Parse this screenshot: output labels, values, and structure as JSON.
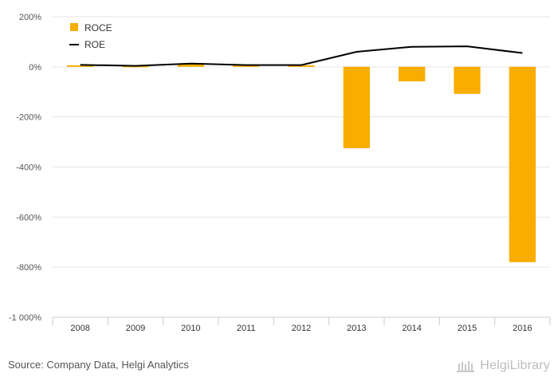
{
  "chart_data": {
    "type": "bar",
    "categories": [
      "2008",
      "2009",
      "2010",
      "2011",
      "2012",
      "2013",
      "2014",
      "2015",
      "2016"
    ],
    "series": [
      {
        "name": "ROCE",
        "kind": "bar",
        "color": "#f9ad00",
        "values": [
          6,
          3,
          12,
          6,
          6,
          -325,
          -58,
          -108,
          -780
        ]
      },
      {
        "name": "ROE",
        "kind": "line",
        "color": "#000000",
        "values": [
          8,
          4,
          13,
          7,
          7,
          60,
          80,
          82,
          55
        ]
      }
    ],
    "y_ticks": [
      "200%",
      "0%",
      "-200%",
      "-400%",
      "-600%",
      "-800%",
      "-1 000%"
    ],
    "ylim": [
      -1000,
      200
    ],
    "grid": true,
    "legend_position": "top-left"
  },
  "footer": {
    "source": "Source: Company Data, Helgi Analytics",
    "brand": "HelgiLibrary"
  },
  "colors": {
    "grid": "#e6e6e6",
    "axis_label": "#555555"
  }
}
